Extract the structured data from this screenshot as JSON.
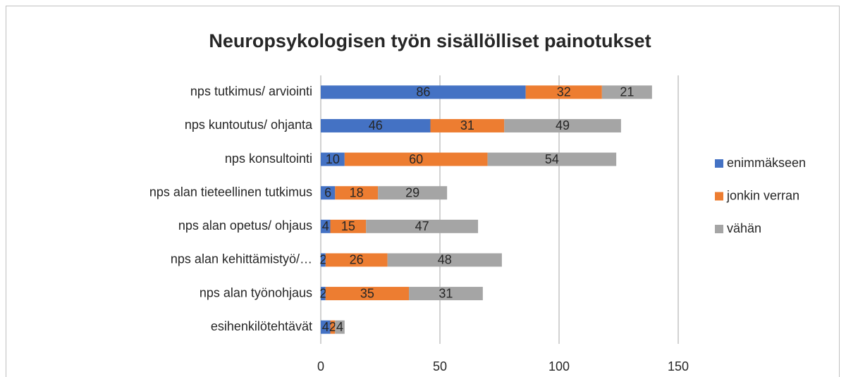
{
  "chart_data": {
    "type": "stacked_bar_horizontal",
    "title": "Neuropsykologisen työn sisällölliset painotukset",
    "categories": [
      "nps tutkimus/ arviointi",
      "nps kuntoutus/ ohjanta",
      "nps konsultointi",
      "nps alan tieteellinen tutkimus",
      "nps alan opetus/ ohjaus",
      "nps alan kehittämistyö/…",
      "nps alan työnohjaus",
      "esihenkilötehtävät"
    ],
    "series": [
      {
        "name": "enimmäkseen",
        "color": "#4472c4",
        "values": [
          86,
          46,
          10,
          6,
          4,
          2,
          2,
          4
        ]
      },
      {
        "name": "jonkin verran",
        "color": "#ed7d31",
        "values": [
          32,
          31,
          60,
          18,
          15,
          26,
          35,
          2
        ]
      },
      {
        "name": "vähän",
        "color": "#a5a5a5",
        "values": [
          21,
          49,
          54,
          29,
          47,
          48,
          31,
          4
        ]
      }
    ],
    "xlim": [
      0,
      150
    ],
    "xticks": [
      0,
      50,
      100,
      150
    ],
    "grid": true,
    "legend": "right"
  }
}
